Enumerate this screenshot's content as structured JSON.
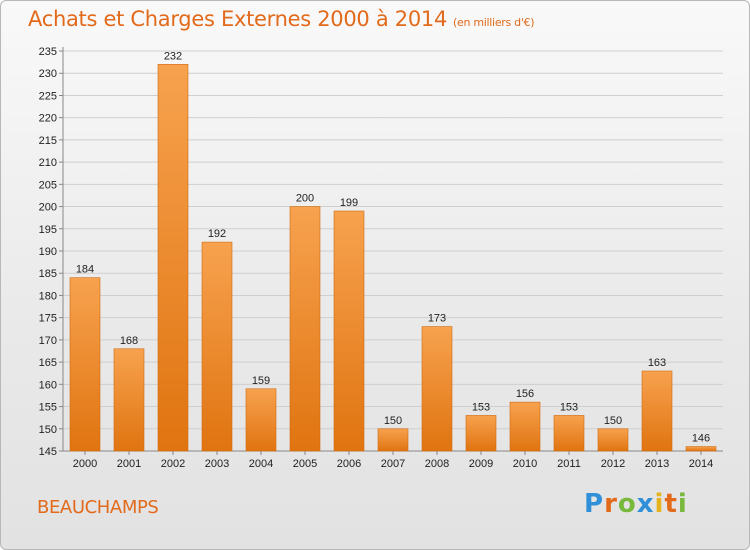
{
  "header": {
    "title": "Achats et Charges Externes 2000 à 2014",
    "unit": "(en milliers d'€)"
  },
  "footer": {
    "town": "BEAUCHAMPS",
    "logo": [
      "P",
      "r",
      "o",
      "x",
      "i",
      "t",
      "i"
    ]
  },
  "colors": {
    "accent": "#e26a1b",
    "bar_top": "#f7a24f",
    "bar_bottom": "#e07410",
    "logo": [
      "#2f8fd8",
      "#e26a1b",
      "#78b83c",
      "#2f8fd8",
      "#e6b31e",
      "#e26a1b",
      "#78b83c"
    ]
  },
  "chart_data": {
    "type": "bar",
    "title": "Achats et Charges Externes 2000 à 2014",
    "categories": [
      "2000",
      "2001",
      "2002",
      "2003",
      "2004",
      "2005",
      "2006",
      "2007",
      "2008",
      "2009",
      "2010",
      "2011",
      "2012",
      "2013",
      "2014"
    ],
    "values": [
      184,
      168,
      232,
      192,
      159,
      200,
      199,
      150,
      173,
      153,
      156,
      153,
      150,
      163,
      146
    ],
    "ylim": [
      145,
      235
    ],
    "yticks": [
      145,
      150,
      155,
      160,
      165,
      170,
      175,
      180,
      185,
      190,
      195,
      200,
      205,
      210,
      215,
      220,
      225,
      230,
      235
    ],
    "grid": true
  }
}
